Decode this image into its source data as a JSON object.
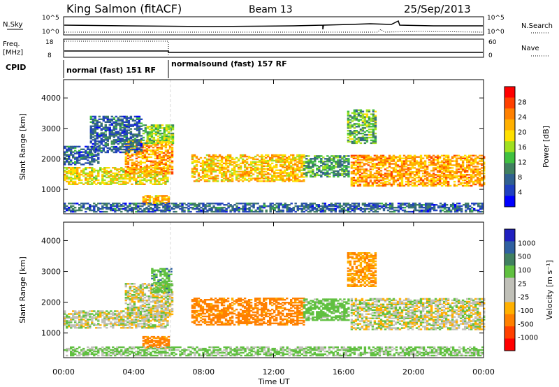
{
  "header": {
    "station": "King Salmon (fitACF)",
    "beam": "Beam 13",
    "date": "25/Sep/2013"
  },
  "top_panels": {
    "nsky_label": "N.Sky",
    "nsearch_label": "N.Search",
    "nsky_ticks": [
      "10^5",
      "10^0"
    ],
    "nsearch_ticks": [
      "10^5",
      "10^0"
    ],
    "freq_label": "Freq.",
    "freq_unit": "[MHz]",
    "freq_ticks": [
      "18",
      "8"
    ],
    "nave_label": "Nave",
    "nave_ticks": [
      "60",
      "0"
    ],
    "cpid_label": "CPID",
    "cpid_segments": [
      {
        "label": "normal (fast) 151 RF",
        "start_hour": 0,
        "end_hour": 6.1
      },
      {
        "label": "normalsound (fast) 157 RF",
        "start_hour": 6.1,
        "end_hour": 24
      }
    ]
  },
  "x_axis": {
    "label": "Time UT",
    "ticks": [
      "00:00",
      "04:00",
      "08:00",
      "12:00",
      "16:00",
      "20:00",
      "00:00"
    ]
  },
  "chart_data": [
    {
      "type": "heatmap",
      "name": "power",
      "ylabel": "Slant Range [km]",
      "ylim": [
        200,
        4600
      ],
      "yticks": [
        1000,
        2000,
        3000,
        4000
      ],
      "xlim": [
        0,
        24
      ],
      "colorbar_label": "Power [dB]",
      "colorbar_ticks": [
        "28",
        "24",
        "20",
        "16",
        "12",
        "8",
        "4"
      ],
      "colorbar_colors": [
        "#ff0000",
        "#ff4000",
        "#ff8000",
        "#ffb000",
        "#ffe000",
        "#a0e020",
        "#40c040",
        "#408060",
        "#306090",
        "#2040c0",
        "#0000ff"
      ],
      "regions": [
        {
          "t0": 0.0,
          "t1": 6.0,
          "r0": 1150,
          "r1": 1700,
          "value": 18
        },
        {
          "t0": 3.5,
          "t1": 6.2,
          "r0": 1500,
          "r1": 2600,
          "value": 22
        },
        {
          "t0": 4.5,
          "t1": 6.2,
          "r0": 2500,
          "r1": 3100,
          "value": 14
        },
        {
          "t0": 1.5,
          "t1": 4.5,
          "r0": 2200,
          "r1": 3400,
          "value": 6
        },
        {
          "t0": 0.0,
          "t1": 2.0,
          "r0": 1800,
          "r1": 2400,
          "value": 6
        },
        {
          "t0": 4.5,
          "t1": 6.0,
          "r0": 500,
          "r1": 800,
          "value": 20
        },
        {
          "t0": 7.3,
          "t1": 13.7,
          "r0": 1250,
          "r1": 2150,
          "value": 20
        },
        {
          "t0": 13.7,
          "t1": 16.3,
          "r0": 1400,
          "r1": 2100,
          "value": 10
        },
        {
          "t0": 16.2,
          "t1": 17.8,
          "r0": 2500,
          "r1": 3600,
          "value": 12
        },
        {
          "t0": 16.4,
          "t1": 24.0,
          "r0": 1100,
          "r1": 2100,
          "value": 22
        },
        {
          "t0": 0.0,
          "t1": 24.0,
          "r0": 250,
          "r1": 550,
          "value": 6
        }
      ]
    },
    {
      "type": "heatmap",
      "name": "velocity",
      "ylabel": "Slant Range [km]",
      "ylim": [
        200,
        4600
      ],
      "yticks": [
        1000,
        2000,
        3000,
        4000
      ],
      "xlim": [
        0,
        24
      ],
      "colorbar_label": "Velocity [m s⁻¹]",
      "colorbar_ticks": [
        "1000",
        "500",
        "100",
        "25",
        "-25",
        "-100",
        "-500",
        "-1000"
      ],
      "colorbar_colors": [
        "#2020c0",
        "#3060a0",
        "#408060",
        "#60c040",
        "#c0c0b8",
        "#c0c0b8",
        "#ffb000",
        "#ff8000",
        "#ff4000",
        "#ff0000"
      ],
      "regions": [
        {
          "t0": 0.0,
          "t1": 6.0,
          "r0": 1150,
          "r1": 1700,
          "value": 0
        },
        {
          "t0": 3.5,
          "t1": 6.2,
          "r0": 1500,
          "r1": 2600,
          "value": 0
        },
        {
          "t0": 4.5,
          "t1": 6.0,
          "r0": 500,
          "r1": 900,
          "value": -300
        },
        {
          "t0": 5.0,
          "t1": 6.2,
          "r0": 2300,
          "r1": 3100,
          "value": 200
        },
        {
          "t0": 7.3,
          "t1": 13.7,
          "r0": 1250,
          "r1": 2150,
          "value": -300
        },
        {
          "t0": 13.7,
          "t1": 16.3,
          "r0": 1400,
          "r1": 2100,
          "value": 150
        },
        {
          "t0": 16.2,
          "t1": 17.8,
          "r0": 2500,
          "r1": 3600,
          "value": -200
        },
        {
          "t0": 16.4,
          "t1": 24.0,
          "r0": 1100,
          "r1": 2100,
          "value": 0
        },
        {
          "t0": 0.0,
          "t1": 24.0,
          "r0": 250,
          "r1": 550,
          "value": 100
        }
      ]
    }
  ]
}
